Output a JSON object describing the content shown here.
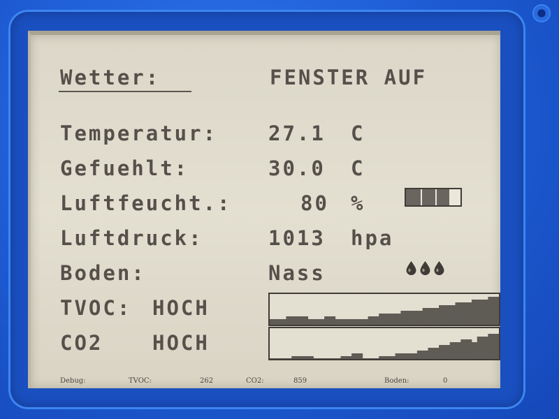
{
  "header": {
    "title": "Wetter:",
    "status": "FENSTER AUF"
  },
  "rows": [
    {
      "label": "Temperatur:",
      "value": "27.1",
      "unit": "C"
    },
    {
      "label": "Gefuehlt:",
      "value": "30.0",
      "unit": "C"
    },
    {
      "label": "Luftfeucht.:",
      "value": "80",
      "unit": "%"
    },
    {
      "label": "Luftdruck:",
      "value": "1013",
      "unit": "hpa"
    },
    {
      "label": "Boden:",
      "value": "Nass"
    }
  ],
  "humidity_bar": {
    "fraction": 0.8,
    "segments": 3
  },
  "soil_drops": {
    "count": 3,
    "icon": "water-drop-icon"
  },
  "tvoc": {
    "label": "TVOC:",
    "level": "HOCH",
    "history": [
      2,
      2,
      2,
      3,
      3,
      3,
      3,
      2,
      2,
      2,
      3,
      3,
      2,
      2,
      2,
      2,
      2,
      2,
      3,
      3,
      4,
      4,
      4,
      4,
      5,
      5,
      5,
      5,
      6,
      6,
      6,
      7,
      7,
      7,
      8,
      8,
      8,
      9,
      9,
      9,
      10,
      10
    ]
  },
  "co2": {
    "label": "CO2",
    "level": "HOCH",
    "history": [
      0,
      0,
      0,
      0,
      1,
      1,
      1,
      1,
      0,
      0,
      0,
      0,
      0,
      1,
      1,
      2,
      2,
      0,
      0,
      0,
      1,
      1,
      1,
      2,
      2,
      2,
      2,
      3,
      3,
      4,
      4,
      5,
      5,
      6,
      6,
      7,
      7,
      6,
      8,
      8,
      9,
      9
    ]
  },
  "debug": {
    "label": "Debug:",
    "tvoc_label": "TVOC:",
    "tvoc_value": "262",
    "co2_label": "CO2:",
    "co2_value": "859",
    "boden_label": "Boden:",
    "boden_value": "0"
  },
  "colors": {
    "frame": "#1f5fd6",
    "screen": "#dfdbcc",
    "ink": "#4a4640",
    "bar": "#5f5b55"
  }
}
